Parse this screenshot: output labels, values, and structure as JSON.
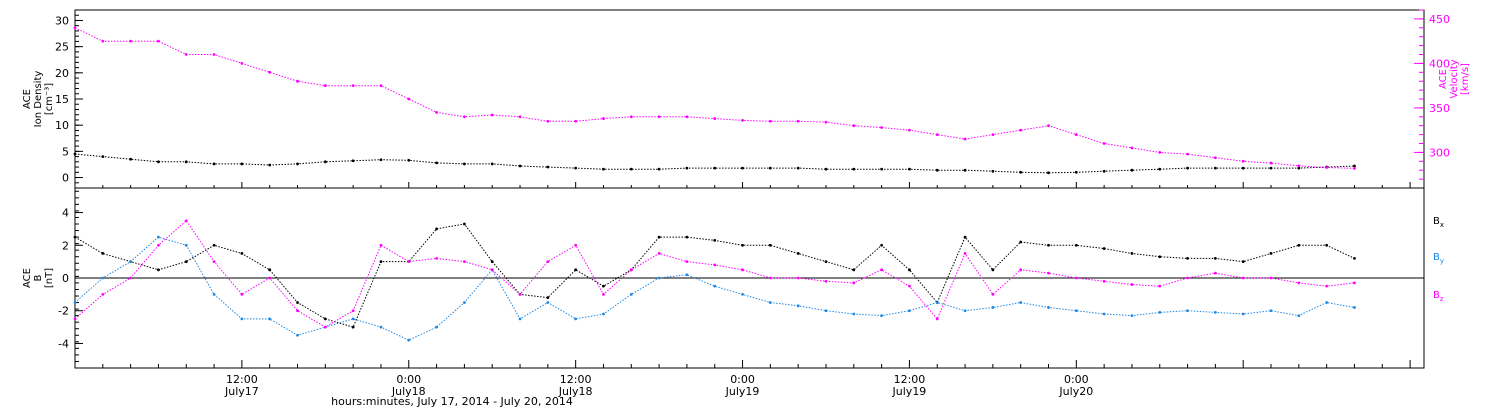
{
  "chart_data": [
    {
      "type": "scatter",
      "panel": "top",
      "ylabel_lines": [
        "ACE",
        "Ion Density",
        "[cm⁻³]"
      ],
      "ylabel2_lines": [
        "ACE",
        "Velocity",
        "[km/s]"
      ],
      "xlim": [
        0,
        97
      ],
      "ylim": [
        -2,
        32
      ],
      "y2lim": [
        260,
        460
      ],
      "yticks": [
        0,
        5,
        10,
        15,
        20,
        25,
        30
      ],
      "y2ticks": [
        300,
        350,
        400,
        450
      ],
      "grid": false,
      "series": [
        {
          "color": "#000000",
          "x": [
            0,
            2,
            4,
            6,
            8,
            10,
            12,
            14,
            16,
            18,
            20,
            22,
            24,
            26,
            28,
            30,
            32,
            34,
            36,
            38,
            40,
            42,
            44,
            46,
            48,
            50,
            52,
            54,
            56,
            58,
            60,
            62,
            64,
            66,
            68,
            70,
            72,
            74,
            76,
            78,
            80,
            82,
            84,
            86,
            88,
            90,
            92
          ],
          "y": [
            4.5,
            4.0,
            3.5,
            3.0,
            3.0,
            2.6,
            2.6,
            2.4,
            2.6,
            3.0,
            3.2,
            3.4,
            3.3,
            2.8,
            2.6,
            2.6,
            2.2,
            2.0,
            1.8,
            1.6,
            1.6,
            1.6,
            1.8,
            1.8,
            1.8,
            1.8,
            1.8,
            1.6,
            1.6,
            1.6,
            1.6,
            1.4,
            1.4,
            1.2,
            1.0,
            0.9,
            1.0,
            1.2,
            1.4,
            1.6,
            1.8,
            1.8,
            1.8,
            1.8,
            1.8,
            2.0,
            2.2
          ]
        },
        {
          "axis": "y2",
          "color": "#ff00ff",
          "x": [
            0,
            2,
            4,
            6,
            8,
            10,
            12,
            14,
            16,
            18,
            20,
            22,
            24,
            26,
            28,
            30,
            32,
            34,
            36,
            38,
            40,
            42,
            44,
            46,
            48,
            50,
            52,
            54,
            56,
            58,
            60,
            62,
            64,
            66,
            68,
            70,
            72,
            74,
            76,
            78,
            80,
            82,
            84,
            86,
            88,
            90,
            92
          ],
          "y": [
            440,
            425,
            425,
            425,
            410,
            410,
            400,
            390,
            380,
            375,
            375,
            375,
            360,
            345,
            340,
            342,
            340,
            335,
            335,
            338,
            340,
            340,
            340,
            338,
            336,
            335,
            335,
            334,
            330,
            328,
            325,
            320,
            315,
            320,
            325,
            330,
            320,
            310,
            305,
            300,
            298,
            294,
            290,
            288,
            285,
            283,
            282
          ]
        }
      ]
    },
    {
      "type": "scatter",
      "panel": "bottom",
      "ylabel_lines": [
        "ACE",
        "B",
        "[nT]"
      ],
      "xlim": [
        0,
        97
      ],
      "ylim": [
        -5.5,
        5.5
      ],
      "yticks": [
        -4,
        -2,
        0,
        2,
        4
      ],
      "grid": false,
      "zero_line": true,
      "legend": [
        {
          "label": "B",
          "sub": "x",
          "color": "#000000"
        },
        {
          "label": "B",
          "sub": "y",
          "color": "#1e88e5"
        },
        {
          "label": "B",
          "sub": "z",
          "color": "#ff00ff"
        }
      ],
      "series": [
        {
          "name": "Bx",
          "color": "#000000",
          "x": [
            0,
            2,
            4,
            6,
            8,
            10,
            12,
            14,
            16,
            18,
            20,
            22,
            24,
            26,
            28,
            30,
            32,
            34,
            36,
            38,
            40,
            42,
            44,
            46,
            48,
            50,
            52,
            54,
            56,
            58,
            60,
            62,
            64,
            66,
            68,
            70,
            72,
            74,
            76,
            78,
            80,
            82,
            84,
            86,
            88,
            90,
            92
          ],
          "y": [
            2.5,
            1.5,
            1.0,
            0.5,
            1.0,
            2.0,
            1.5,
            0.5,
            -1.5,
            -2.5,
            -3.0,
            1.0,
            1.0,
            3.0,
            3.3,
            1.0,
            -1.0,
            -1.2,
            0.5,
            -0.5,
            0.5,
            2.5,
            2.5,
            2.3,
            2.0,
            2.0,
            1.5,
            1.0,
            0.5,
            2.0,
            0.5,
            -1.5,
            2.5,
            0.5,
            2.2,
            2.0,
            2.0,
            1.8,
            1.5,
            1.3,
            1.2,
            1.2,
            1.0,
            1.5,
            2.0,
            2.0,
            1.2
          ]
        },
        {
          "name": "By",
          "color": "#1e88e5",
          "x": [
            0,
            2,
            4,
            6,
            8,
            10,
            12,
            14,
            16,
            18,
            20,
            22,
            24,
            26,
            28,
            30,
            32,
            34,
            36,
            38,
            40,
            42,
            44,
            46,
            48,
            50,
            52,
            54,
            56,
            58,
            60,
            62,
            64,
            66,
            68,
            70,
            72,
            74,
            76,
            78,
            80,
            82,
            84,
            86,
            88,
            90,
            92
          ],
          "y": [
            -1.5,
            0.0,
            1.0,
            2.5,
            2.0,
            -1.0,
            -2.5,
            -2.5,
            -3.5,
            -3.0,
            -2.5,
            -3.0,
            -3.8,
            -3.0,
            -1.5,
            0.5,
            -2.5,
            -1.5,
            -2.5,
            -2.2,
            -1.0,
            0.0,
            0.2,
            -0.5,
            -1.0,
            -1.5,
            -1.7,
            -2.0,
            -2.2,
            -2.3,
            -2.0,
            -1.5,
            -2.0,
            -1.8,
            -1.5,
            -1.8,
            -2.0,
            -2.2,
            -2.3,
            -2.1,
            -2.0,
            -2.1,
            -2.2,
            -2.0,
            -2.3,
            -1.5,
            -1.8
          ]
        },
        {
          "name": "Bz",
          "color": "#ff00ff",
          "x": [
            0,
            2,
            4,
            6,
            8,
            10,
            12,
            14,
            16,
            18,
            20,
            22,
            24,
            26,
            28,
            30,
            32,
            34,
            36,
            38,
            40,
            42,
            44,
            46,
            48,
            50,
            52,
            54,
            56,
            58,
            60,
            62,
            64,
            66,
            68,
            70,
            72,
            74,
            76,
            78,
            80,
            82,
            84,
            86,
            88,
            90,
            92
          ],
          "y": [
            -2.5,
            -1.0,
            0.0,
            2.0,
            3.5,
            1.0,
            -1.0,
            0.0,
            -2.0,
            -3.0,
            -2.0,
            2.0,
            1.0,
            1.2,
            1.0,
            0.5,
            -1.0,
            1.0,
            2.0,
            -1.0,
            0.5,
            1.5,
            1.0,
            0.8,
            0.5,
            0.0,
            0.0,
            -0.2,
            -0.3,
            0.5,
            -0.5,
            -2.5,
            1.5,
            -1.0,
            0.5,
            0.3,
            0.0,
            -0.2,
            -0.4,
            -0.5,
            0.0,
            0.3,
            0.0,
            0.0,
            -0.3,
            -0.5,
            -0.3
          ]
        }
      ]
    }
  ],
  "x_axis": {
    "ticks": [
      {
        "x": 12,
        "time": "12:00",
        "date": "July17"
      },
      {
        "x": 24,
        "time": "0:00",
        "date": "July18"
      },
      {
        "x": 36,
        "time": "12:00",
        "date": "July18"
      },
      {
        "x": 48,
        "time": "0:00",
        "date": "July19"
      },
      {
        "x": 60,
        "time": "12:00",
        "date": "July19"
      },
      {
        "x": 72,
        "time": "0:00",
        "date": "July20"
      }
    ],
    "title": "hours:minutes, July 17, 2014 - July 20, 2014"
  }
}
